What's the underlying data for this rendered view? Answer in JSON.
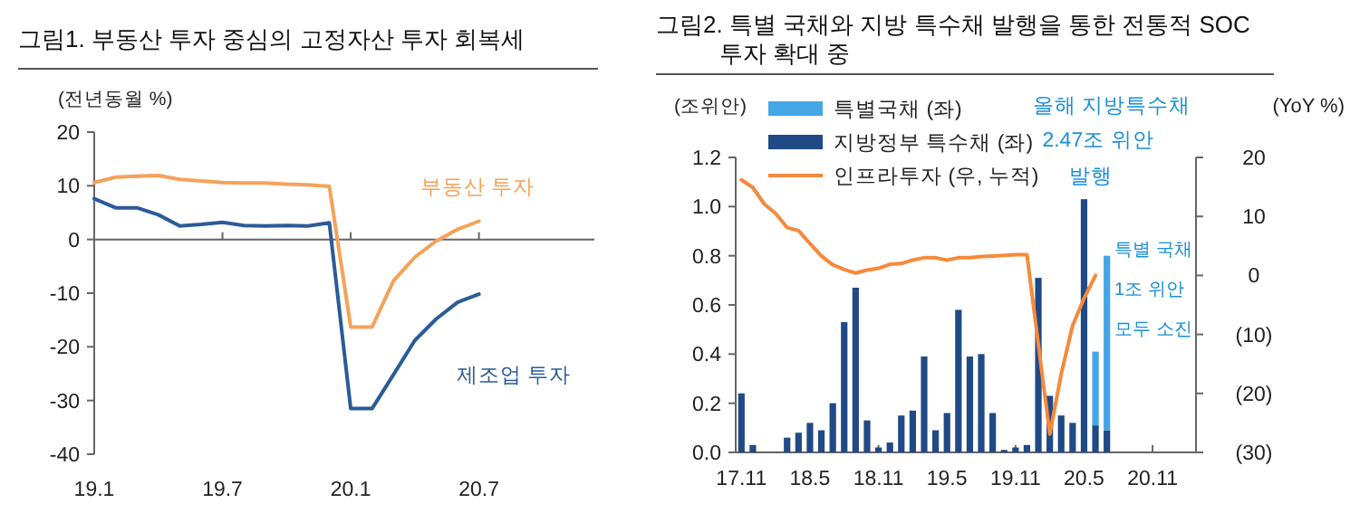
{
  "chart_data": [
    {
      "type": "line",
      "title": "그림1. 부동산 투자 중심의 고정자산 투자 회복세",
      "ylabel": "(전년동월 %)",
      "categories": [
        "19.1",
        null,
        null,
        null,
        null,
        null,
        "19.7",
        null,
        null,
        null,
        null,
        null,
        "20.1",
        null,
        null,
        null,
        null,
        null,
        "20.7",
        null,
        null,
        null,
        null,
        null
      ],
      "series": [
        {
          "name": "부동산 투자",
          "color": "#f5a25a",
          "values": [
            10.6,
            11.6,
            11.8,
            11.9,
            11.2,
            10.9,
            10.6,
            10.5,
            10.5,
            10.3,
            10.2,
            9.9,
            -16.3,
            -16.3,
            -7.7,
            -3.3,
            -0.3,
            1.9,
            3.4,
            null,
            null,
            null,
            null,
            null
          ]
        },
        {
          "name": "제조업 투자",
          "color": "#2b5b98",
          "values": [
            7.6,
            5.9,
            5.9,
            4.6,
            2.5,
            2.8,
            3.2,
            2.6,
            2.5,
            2.6,
            2.5,
            3.1,
            -31.5,
            -31.5,
            -25.2,
            -18.8,
            -14.8,
            -11.7,
            -10.2,
            null,
            null,
            null,
            null,
            null
          ]
        }
      ],
      "ylim": [
        -40,
        20
      ],
      "yticks": [
        -40,
        -30,
        -20,
        -10,
        0,
        10,
        20
      ],
      "marker": "none",
      "line_style": "solid"
    },
    {
      "type": "bar",
      "title": "그림2. 특별 국채와 지방 특수채 발행을 통한 전통적 SOC 투자 확대 중",
      "ylabel": "(조위안)",
      "y2label": "(YoY %)",
      "stacked": true,
      "legend": "top left",
      "categories": [
        "17.11",
        null,
        null,
        null,
        null,
        null,
        "18.5",
        null,
        null,
        null,
        null,
        null,
        "18.11",
        null,
        null,
        null,
        null,
        null,
        "19.5",
        null,
        null,
        null,
        null,
        null,
        "19.11",
        null,
        null,
        null,
        null,
        null,
        "20.5",
        null,
        null,
        null,
        null,
        null,
        "20.11",
        null,
        null,
        null
      ],
      "series": [
        {
          "name": "지방정부 특수채 (좌)",
          "color": "#1f4a86",
          "values": [
            0.24,
            0.03,
            null,
            null,
            0.06,
            0.08,
            0.12,
            0.09,
            0.2,
            0.53,
            0.67,
            0.13,
            0.02,
            0.04,
            0.15,
            0.17,
            0.39,
            0.09,
            0.16,
            0.58,
            0.39,
            0.4,
            0.16,
            0.01,
            0.02,
            0.03,
            0.71,
            0.23,
            0.15,
            0.12,
            1.03,
            0.11,
            0.09,
            null,
            null,
            null,
            null,
            null,
            null,
            null
          ]
        },
        {
          "name": "특별국채 (좌)",
          "color": "#45a6e6",
          "values": [
            null,
            null,
            null,
            null,
            null,
            null,
            null,
            null,
            null,
            null,
            null,
            null,
            null,
            null,
            null,
            null,
            null,
            null,
            null,
            null,
            null,
            null,
            null,
            null,
            null,
            null,
            null,
            null,
            null,
            null,
            null,
            0.3,
            0.71,
            null,
            null,
            null,
            null,
            null,
            null,
            null
          ]
        },
        {
          "name": "인프라투자 (우, 누적)",
          "type": "line",
          "axis": "y2",
          "color": "#f58a3c",
          "values": [
            16.2,
            14.9,
            12.1,
            10.5,
            8.1,
            7.6,
            5.4,
            3.3,
            1.8,
            1.0,
            0.4,
            0.9,
            1.2,
            1.9,
            2.0,
            2.6,
            3.0,
            3.0,
            2.6,
            3.0,
            3.0,
            3.2,
            3.3,
            3.4,
            3.5,
            3.5,
            null,
            -26.9,
            -16.7,
            -8.5,
            -3.9,
            0.0,
            null,
            null,
            null,
            null,
            null,
            null,
            null,
            null
          ]
        }
      ],
      "ylim": [
        0,
        1.2
      ],
      "yticks": [
        {
          "value": 0,
          "label": "0.0"
        },
        {
          "value": 0.2,
          "label": "0.2"
        },
        {
          "value": 0.4,
          "label": "0.4"
        },
        {
          "value": 0.6,
          "label": "0.6"
        },
        {
          "value": 0.8,
          "label": "0.8"
        },
        {
          "value": 1.0,
          "label": "1.0"
        },
        {
          "value": 1.2,
          "label": "1.2"
        }
      ],
      "y2lim": [
        -30,
        20
      ],
      "y2ticks": [
        {
          "value": -30,
          "label": "(30)"
        },
        {
          "value": -20,
          "label": "(20)"
        },
        {
          "value": -10,
          "label": "(10)"
        },
        0,
        10,
        20
      ],
      "annotations": [
        "올해 지방특수채",
        "2.47조 위안",
        "발행",
        "특별 국채",
        "1조 위안",
        "모두 소진"
      ]
    }
  ]
}
